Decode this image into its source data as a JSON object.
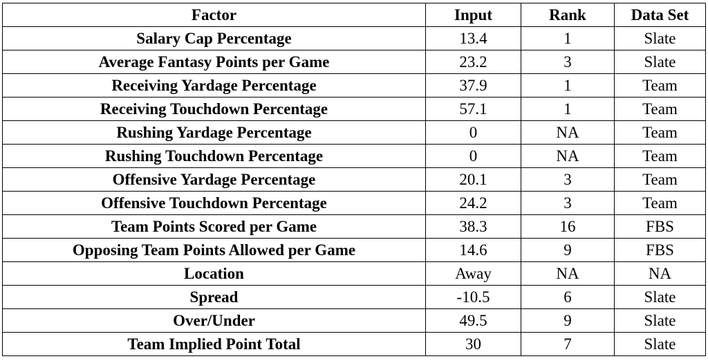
{
  "table": {
    "headers": [
      "Factor",
      "Input",
      "Rank",
      "Data Set"
    ],
    "rows": [
      {
        "factor": "Salary Cap Percentage",
        "input": "13.4",
        "rank": "1",
        "data_set": "Slate"
      },
      {
        "factor": "Average Fantasy Points per Game",
        "input": "23.2",
        "rank": "3",
        "data_set": "Slate"
      },
      {
        "factor": "Receiving Yardage Percentage",
        "input": "37.9",
        "rank": "1",
        "data_set": "Team"
      },
      {
        "factor": "Receiving Touchdown Percentage",
        "input": "57.1",
        "rank": "1",
        "data_set": "Team"
      },
      {
        "factor": "Rushing Yardage Percentage",
        "input": "0",
        "rank": "NA",
        "data_set": "Team"
      },
      {
        "factor": "Rushing Touchdown Percentage",
        "input": "0",
        "rank": "NA",
        "data_set": "Team"
      },
      {
        "factor": "Offensive Yardage Percentage",
        "input": "20.1",
        "rank": "3",
        "data_set": "Team"
      },
      {
        "factor": "Offensive Touchdown Percentage",
        "input": "24.2",
        "rank": "3",
        "data_set": "Team"
      },
      {
        "factor": "Team Points Scored per Game",
        "input": "38.3",
        "rank": "16",
        "data_set": "FBS"
      },
      {
        "factor": "Opposing Team Points Allowed per Game",
        "input": "14.6",
        "rank": "9",
        "data_set": "FBS"
      },
      {
        "factor": "Location",
        "input": "Away",
        "rank": "NA",
        "data_set": "NA"
      },
      {
        "factor": "Spread",
        "input": "-10.5",
        "rank": "6",
        "data_set": "Slate"
      },
      {
        "factor": "Over/Under",
        "input": "49.5",
        "rank": "9",
        "data_set": "Slate"
      },
      {
        "factor": "Team Implied Point Total",
        "input": "30",
        "rank": "7",
        "data_set": "Slate"
      }
    ]
  }
}
